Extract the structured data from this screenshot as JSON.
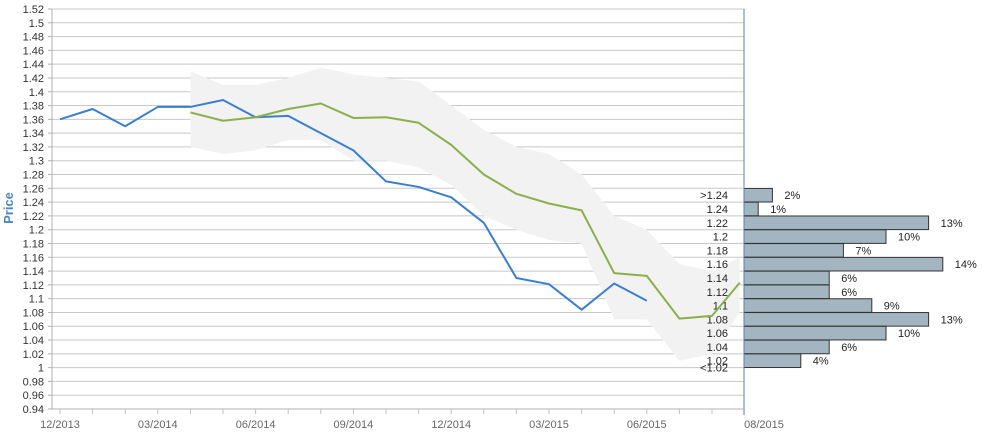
{
  "chart_data": {
    "type": "line",
    "ylabel": "Price",
    "ylim": [
      0.94,
      1.52
    ],
    "y_ticks": [
      "1.52",
      "1.5",
      "1.48",
      "1.46",
      "1.44",
      "1.42",
      "1.4",
      "1.38",
      "1.36",
      "1.34",
      "1.32",
      "1.3",
      "1.28",
      "1.26",
      "1.24",
      "1.22",
      "1.2",
      "1.18",
      "1.16",
      "1.14",
      "1.12",
      "1.1",
      "1.08",
      "1.06",
      "1.04",
      "1.02",
      "1",
      "0.98",
      "0.96",
      "0.94"
    ],
    "x_ticks": [
      "12/2013",
      "03/2014",
      "06/2014",
      "09/2014",
      "12/2014",
      "03/2015",
      "06/2015",
      "08/2015"
    ],
    "grid": true,
    "series": [
      {
        "color": "#3a7fcf",
        "x": [
          "12/2013",
          "01/2014",
          "02/2014",
          "03/2014",
          "04/2014",
          "05/2014",
          "06/2014",
          "07/2014",
          "08/2014",
          "09/2014",
          "10/2014",
          "11/2014",
          "12/2014",
          "01/2015",
          "02/2015",
          "03/2015",
          "04/2015",
          "05/2015",
          "06/2015"
        ],
        "values": [
          1.36,
          1.375,
          1.35,
          1.378,
          1.378,
          1.388,
          1.363,
          1.365,
          1.34,
          1.315,
          1.27,
          1.262,
          1.247,
          1.21,
          1.13,
          1.121,
          1.084,
          1.122,
          1.097
        ]
      },
      {
        "color": "#8ab04a",
        "x": [
          "04/2014",
          "05/2014",
          "06/2014",
          "07/2014",
          "08/2014",
          "09/2014",
          "10/2014",
          "11/2014",
          "12/2014",
          "01/2015",
          "02/2015",
          "03/2015",
          "04/2015",
          "05/2015",
          "06/2015",
          "07/2015",
          "08/2015",
          "08/2015+"
        ],
        "values": [
          1.37,
          1.358,
          1.363,
          1.375,
          1.383,
          1.362,
          1.363,
          1.355,
          1.323,
          1.28,
          1.252,
          1.238,
          1.228,
          1.137,
          1.133,
          1.071,
          1.075,
          1.123
        ]
      }
    ],
    "forecast_band": {
      "color": "#f2f2f2",
      "x": [
        "04/2014",
        "05/2014",
        "06/2014",
        "07/2014",
        "08/2014",
        "09/2014",
        "10/2014",
        "11/2014",
        "12/2014",
        "01/2015",
        "02/2015",
        "03/2015",
        "04/2015",
        "05/2015",
        "06/2015",
        "07/2015",
        "08/2015",
        "08/2015+"
      ],
      "upper": [
        1.43,
        1.41,
        1.41,
        1.42,
        1.435,
        1.425,
        1.42,
        1.415,
        1.38,
        1.345,
        1.32,
        1.31,
        1.28,
        1.22,
        1.2,
        1.15,
        1.14,
        1.16
      ],
      "lower": [
        1.32,
        1.31,
        1.315,
        1.33,
        1.33,
        1.3,
        1.3,
        1.29,
        1.265,
        1.22,
        1.2,
        1.185,
        1.18,
        1.07,
        1.07,
        1.01,
        1.02,
        1.08
      ]
    },
    "histogram": {
      "color": "#a2b5c1",
      "border": "#333333",
      "bins": [
        {
          "label": ">1.24",
          "value": 1.25,
          "percent": "2%",
          "pct": 2
        },
        {
          "label": "1.24",
          "value": 1.23,
          "percent": "1%",
          "pct": 1
        },
        {
          "label": "1.22",
          "value": 1.21,
          "percent": "13%",
          "pct": 13
        },
        {
          "label": "1.2",
          "value": 1.19,
          "percent": "10%",
          "pct": 10
        },
        {
          "label": "1.18",
          "value": 1.17,
          "percent": "7%",
          "pct": 7
        },
        {
          "label": "1.16",
          "value": 1.15,
          "percent": "14%",
          "pct": 14
        },
        {
          "label": "1.14",
          "value": 1.13,
          "percent": "6%",
          "pct": 6
        },
        {
          "label": "1.12",
          "value": 1.11,
          "percent": "6%",
          "pct": 6
        },
        {
          "label": "1.1",
          "value": 1.09,
          "percent": "9%",
          "pct": 9
        },
        {
          "label": "1.08",
          "value": 1.07,
          "percent": "13%",
          "pct": 13
        },
        {
          "label": "1.06",
          "value": 1.05,
          "percent": "10%",
          "pct": 10
        },
        {
          "label": "1.04",
          "value": 1.03,
          "percent": "6%",
          "pct": 6
        },
        {
          "label": "1.02",
          "value": 1.01,
          "percent": "4%",
          "pct": 4
        },
        {
          "label": "<1.02",
          "value": 1.0,
          "percent": "",
          "pct": 0
        }
      ]
    }
  }
}
